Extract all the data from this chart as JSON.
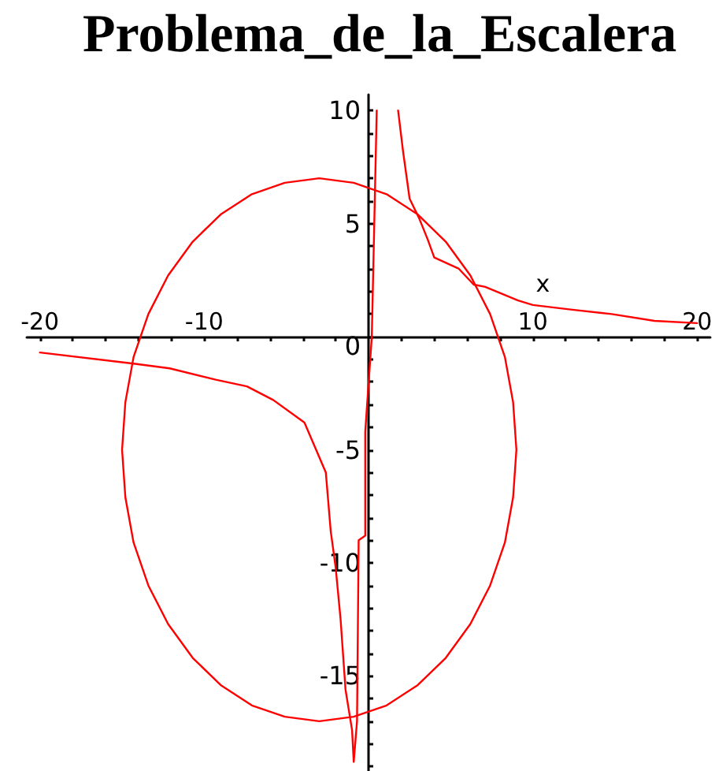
{
  "chart_data": {
    "type": "line",
    "title": "Problema_de_la_Escalera",
    "xlabel": "x",
    "xlim": [
      -20.8,
      20.8
    ],
    "ylim": [
      -19.2,
      10.7
    ],
    "xticks": [
      -20,
      {
        "value": -18,
        "label": null
      },
      {
        "value": -16,
        "label": null
      },
      {
        "value": -14,
        "label": null
      },
      {
        "value": -12,
        "label": null
      },
      -10,
      {
        "value": -8,
        "label": null
      },
      {
        "value": -6,
        "label": null
      },
      {
        "value": -4,
        "label": null
      },
      {
        "value": -2,
        "label": null
      },
      {
        "value": 2,
        "label": null
      },
      {
        "value": 4,
        "label": null
      },
      {
        "value": 6,
        "label": null
      },
      {
        "value": 8,
        "label": null
      },
      10,
      {
        "value": 12,
        "label": null
      },
      {
        "value": 14,
        "label": null
      },
      {
        "value": 16,
        "label": null
      },
      {
        "value": 18,
        "label": null
      },
      20
    ],
    "yticks": [
      {
        "value": -19,
        "label": null
      },
      {
        "value": -18,
        "label": null
      },
      {
        "value": -17,
        "label": null
      },
      {
        "value": -16,
        "label": null
      },
      -15,
      {
        "value": -14,
        "label": null
      },
      {
        "value": -13,
        "label": null
      },
      {
        "value": -12,
        "label": null
      },
      {
        "value": -11,
        "label": null
      },
      -10,
      {
        "value": -9,
        "label": null
      },
      {
        "value": -8,
        "label": null
      },
      {
        "value": -7,
        "label": null
      },
      {
        "value": -6,
        "label": null
      },
      -5,
      {
        "value": -4,
        "label": null
      },
      {
        "value": -3,
        "label": null
      },
      {
        "value": -2,
        "label": null
      },
      {
        "value": -1,
        "label": null
      },
      0,
      {
        "value": 1,
        "label": null
      },
      {
        "value": 2,
        "label": null
      },
      {
        "value": 3,
        "label": null
      },
      {
        "value": 4,
        "label": null
      },
      5,
      {
        "value": 6,
        "label": null
      },
      {
        "value": 7,
        "label": null
      },
      {
        "value": 8,
        "label": null
      },
      {
        "value": 9,
        "label": null
      },
      10
    ],
    "grid": false,
    "marker": "none",
    "line_style": "solid",
    "series": [
      {
        "color": "#ff0000",
        "x": [
          9.0,
          8.8,
          8.3,
          7.4,
          6.2,
          4.7,
          3.0,
          1.1,
          -0.9,
          -3.0,
          -5.1,
          -7.1,
          -9.0,
          -10.7,
          -12.2,
          -13.4,
          -14.3,
          -14.8,
          -15.0,
          -14.8,
          -14.3,
          -13.4,
          -12.2,
          -10.7,
          -9.0,
          -7.1,
          -5.1,
          -3.0,
          -0.9,
          1.1,
          3.0,
          4.7,
          6.2,
          7.4,
          8.3,
          8.8,
          9.0,
          8.8
        ],
        "values": [
          -5.0,
          -2.9,
          -0.9,
          1.0,
          2.7,
          4.2,
          5.4,
          6.3,
          6.8,
          7.0,
          6.8,
          6.3,
          5.4,
          4.2,
          2.7,
          1.0,
          -0.9,
          -2.9,
          -5.0,
          -7.1,
          -9.1,
          -11.0,
          -12.7,
          -14.2,
          -15.4,
          -16.3,
          -16.8,
          -17.0,
          -16.8,
          -16.3,
          -15.4,
          -14.2,
          -12.7,
          -11.0,
          -9.1,
          -7.1,
          -5.0,
          -2.9
        ]
      },
      {
        "color": "#ff0000",
        "x": [
          -20,
          -14.2,
          -12.1,
          -9.3,
          -7.4,
          -5.8,
          -3.9,
          -2.6,
          -2.3,
          -2.0,
          -1.7,
          -1.4,
          -1.0,
          -0.9,
          -0.7,
          -0.6,
          -0.2,
          -0.2,
          0.2,
          0.5
        ],
        "values": [
          -0.7,
          -1.2,
          -1.4,
          -1.9,
          -2.2,
          -2.8,
          -3.8,
          -6.0,
          -8.6,
          -10.2,
          -12.5,
          -15.6,
          -17.4,
          -18.8,
          -17.0,
          -9.0,
          -8.8,
          -4.2,
          0,
          10
        ]
      },
      {
        "color": "#ff0000",
        "x": [
          1.8,
          2.1,
          2.5,
          3.1,
          3.6,
          4.0,
          5.5,
          6.4,
          7.1,
          9.1,
          10,
          12.3,
          14.8,
          17.4,
          20
        ],
        "values": [
          10,
          8.2,
          6.1,
          5.2,
          4.3,
          3.5,
          3.0,
          2.3,
          2.2,
          1.6,
          1.4,
          1.2,
          1.0,
          0.7,
          0.6
        ]
      }
    ]
  }
}
